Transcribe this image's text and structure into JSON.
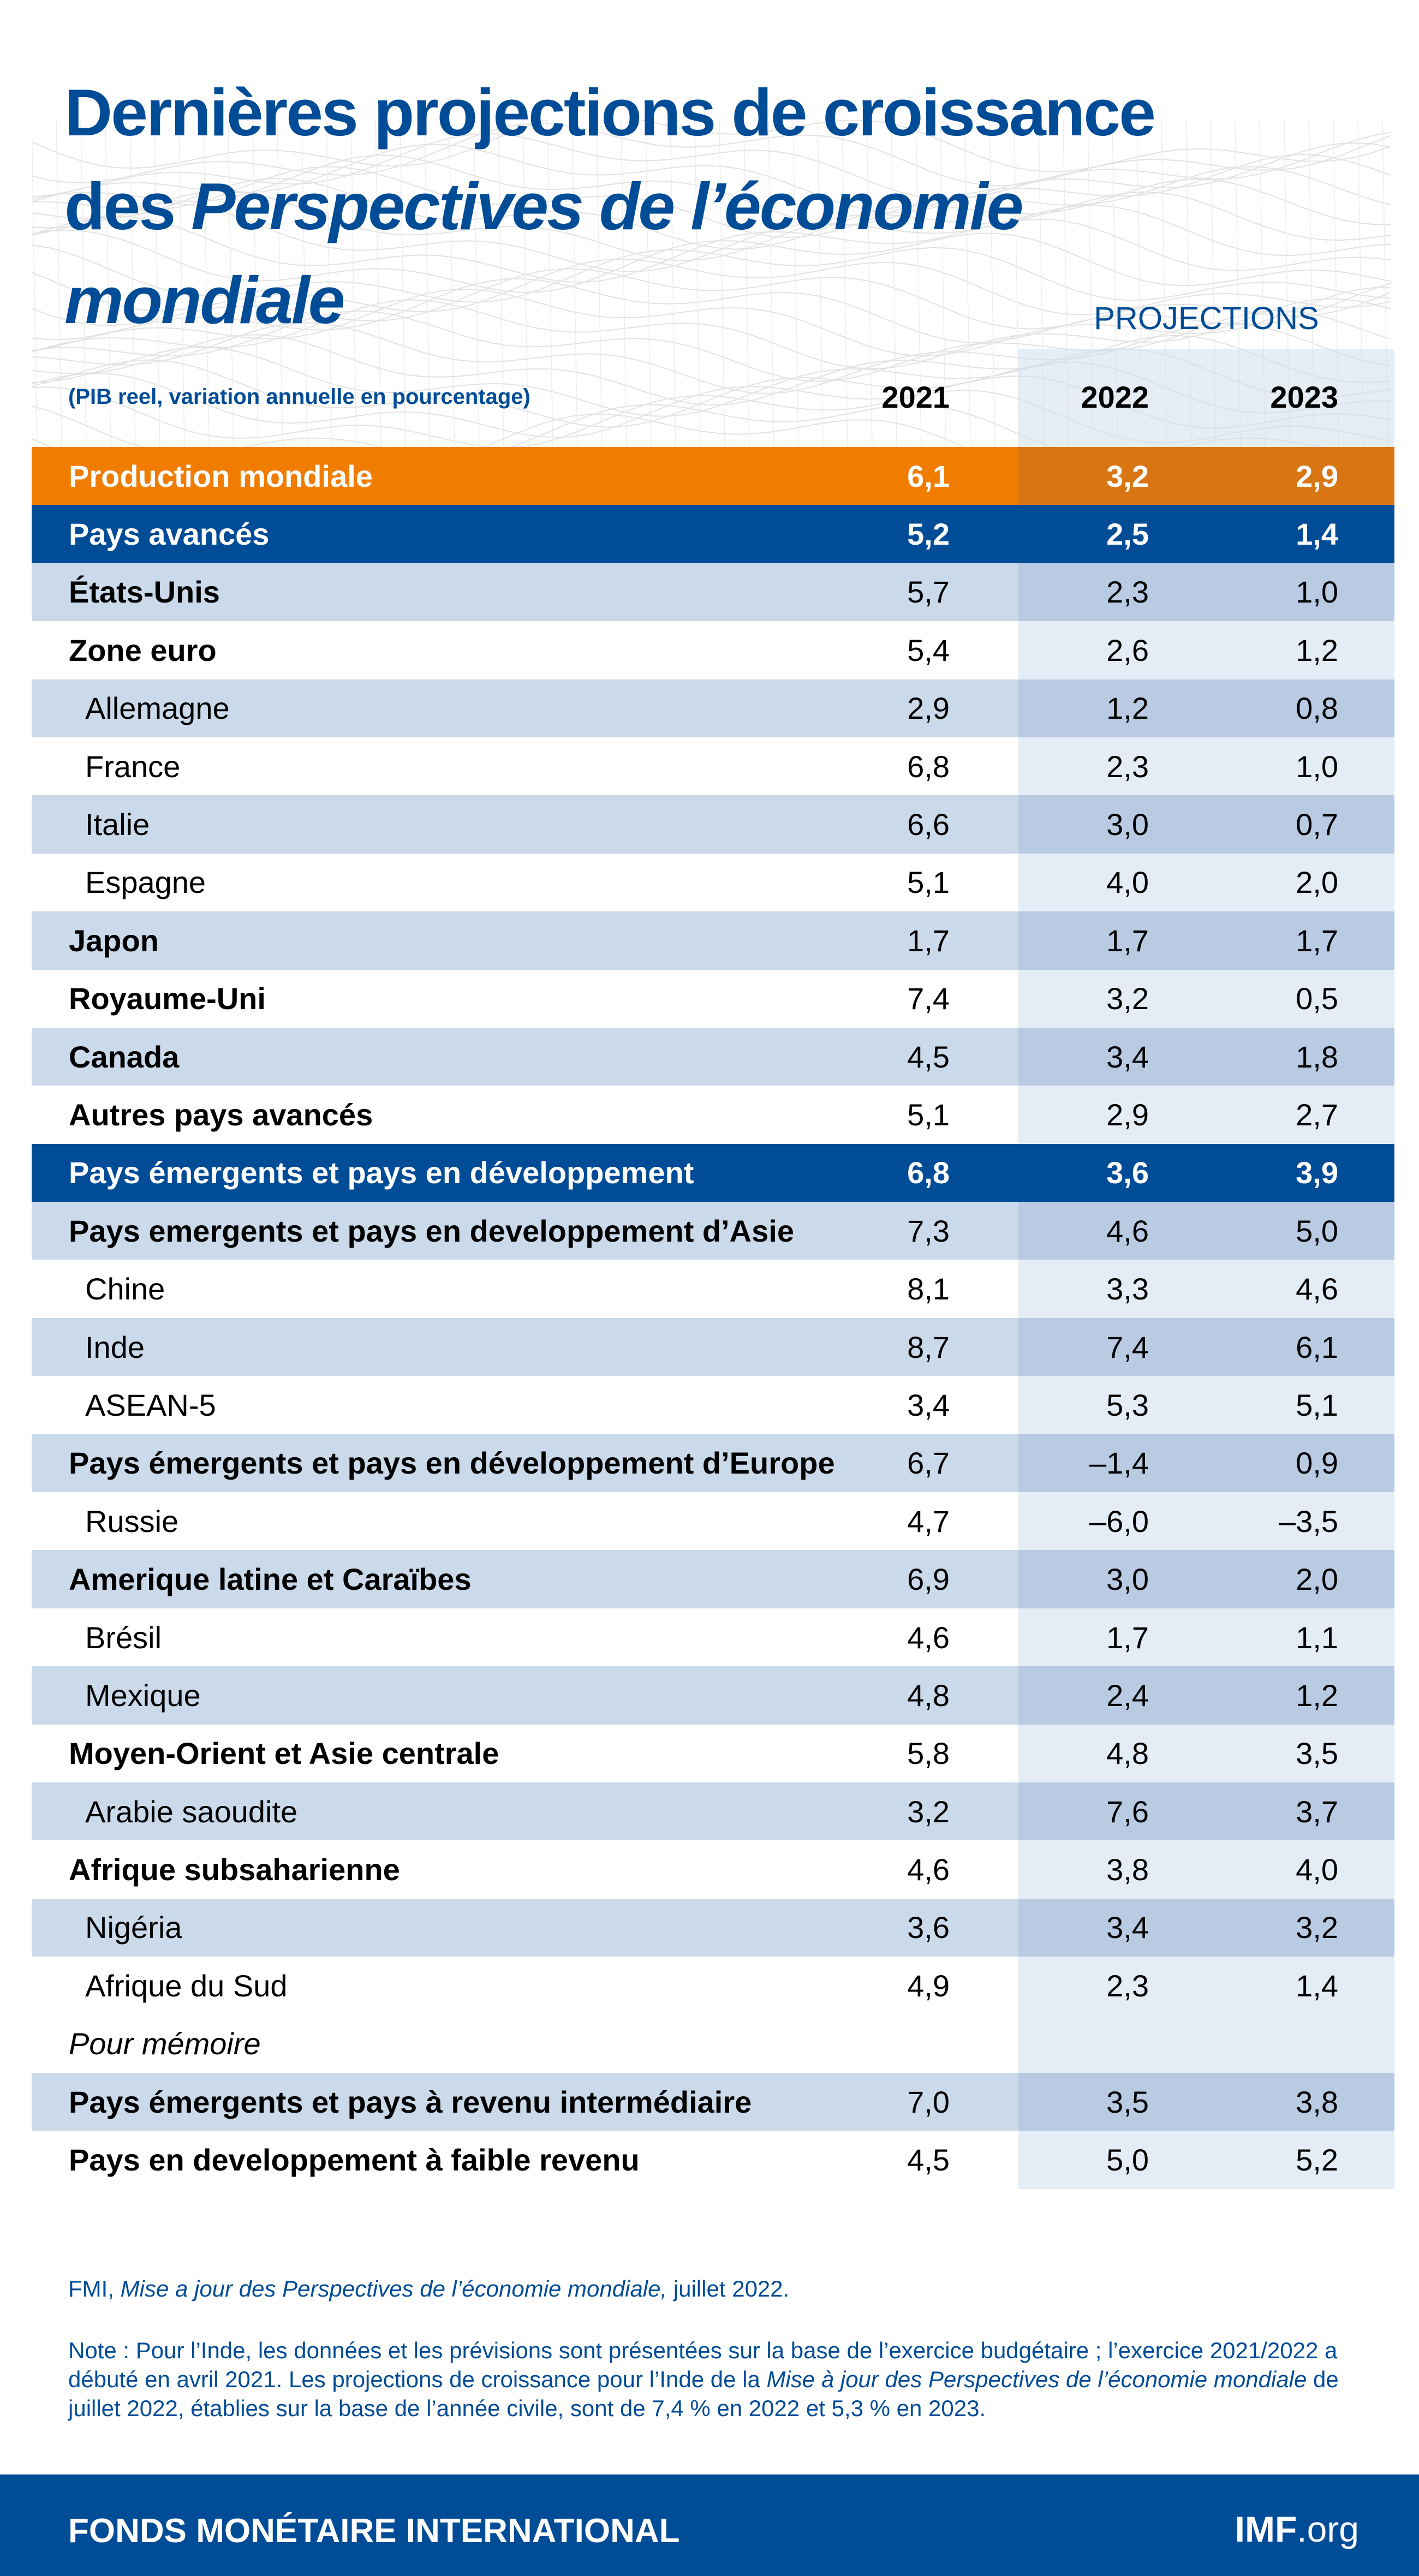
{
  "title": {
    "line1": "Dernières projections de croissance",
    "line2_prefix": "des ",
    "line2_italic": "Perspectives de l’économie",
    "line3_italic": "mondiale"
  },
  "header": {
    "projections_label": "PROJECTIONS",
    "subtitle": "(PIB reel, variation annuelle en pourcentage)",
    "years": [
      "2021",
      "2022",
      "2023"
    ]
  },
  "colors": {
    "brand_blue": "#004c97",
    "orange": "#f07c00",
    "row_light": "#cbdaea",
    "projection_shade": "#b8cbe3"
  },
  "rows": [
    {
      "label": "Production mondiale",
      "style": "orange",
      "values": [
        "6,1",
        "3,2",
        "2,9"
      ]
    },
    {
      "label": "Pays avancés",
      "style": "blue",
      "values": [
        "5,2",
        "2,5",
        "1,4"
      ]
    },
    {
      "label": "États-Unis",
      "style": "light bold",
      "values": [
        "5,7",
        "2,3",
        "1,0"
      ]
    },
    {
      "label": "Zone euro",
      "style": "white bold",
      "values": [
        "5,4",
        "2,6",
        "1,2"
      ]
    },
    {
      "label": "Allemagne",
      "style": "light sub",
      "values": [
        "2,9",
        "1,2",
        "0,8"
      ]
    },
    {
      "label": "France",
      "style": "white sub",
      "values": [
        "6,8",
        "2,3",
        "1,0"
      ]
    },
    {
      "label": "Italie",
      "style": "light sub",
      "values": [
        "6,6",
        "3,0",
        "0,7"
      ]
    },
    {
      "label": "Espagne",
      "style": "white sub",
      "values": [
        "5,1",
        "4,0",
        "2,0"
      ]
    },
    {
      "label": "Japon",
      "style": "light bold",
      "values": [
        "1,7",
        "1,7",
        "1,7"
      ]
    },
    {
      "label": "Royaume-Uni",
      "style": "white bold",
      "values": [
        "7,4",
        "3,2",
        "0,5"
      ]
    },
    {
      "label": "Canada",
      "style": "light bold",
      "values": [
        "4,5",
        "3,4",
        "1,8"
      ]
    },
    {
      "label": "Autres pays avancés",
      "style": "white bold",
      "values": [
        "5,1",
        "2,9",
        "2,7"
      ]
    },
    {
      "label": "Pays émergents et pays en développement",
      "style": "blue",
      "values": [
        "6,8",
        "3,6",
        "3,9"
      ]
    },
    {
      "label": "Pays emergents et pays en developpement d’Asie",
      "style": "light bold",
      "values": [
        "7,3",
        "4,6",
        "5,0"
      ]
    },
    {
      "label": "Chine",
      "style": "white sub",
      "values": [
        "8,1",
        "3,3",
        "4,6"
      ]
    },
    {
      "label": "Inde",
      "style": "light sub",
      "values": [
        "8,7",
        "7,4",
        "6,1"
      ]
    },
    {
      "label": "ASEAN-5",
      "style": "white sub",
      "values": [
        "3,4",
        "5,3",
        "5,1"
      ]
    },
    {
      "label": "Pays émergents et pays en développement d’Europe",
      "style": "light bold",
      "values": [
        "6,7",
        "–1,4",
        "0,9"
      ]
    },
    {
      "label": "Russie",
      "style": "white sub",
      "values": [
        "4,7",
        "–6,0",
        "–3,5"
      ]
    },
    {
      "label": "Amerique latine et Caraïbes",
      "style": "light bold",
      "values": [
        "6,9",
        "3,0",
        "2,0"
      ]
    },
    {
      "label": "Brésil",
      "style": "white sub",
      "values": [
        "4,6",
        "1,7",
        "1,1"
      ]
    },
    {
      "label": "Mexique",
      "style": "light sub",
      "values": [
        "4,8",
        "2,4",
        "1,2"
      ]
    },
    {
      "label": "Moyen-Orient et Asie centrale",
      "style": "white bold",
      "values": [
        "5,8",
        "4,8",
        "3,5"
      ]
    },
    {
      "label": "Arabie saoudite",
      "style": "light sub",
      "values": [
        "3,2",
        "7,6",
        "3,7"
      ]
    },
    {
      "label": "Afrique subsaharienne",
      "style": "white bold",
      "values": [
        "4,6",
        "3,8",
        "4,0"
      ]
    },
    {
      "label": "Nigéria",
      "style": "light sub",
      "values": [
        "3,6",
        "3,4",
        "3,2"
      ]
    },
    {
      "label": "Afrique du Sud",
      "style": "white sub",
      "values": [
        "4,9",
        "2,3",
        "1,4"
      ]
    },
    {
      "label": "Pour mémoire",
      "style": "white italic",
      "values": [
        "",
        "",
        ""
      ]
    },
    {
      "label": "Pays émergents et pays à revenu intermédiaire",
      "style": "light bold",
      "values": [
        "7,0",
        "3,5",
        "3,8"
      ]
    },
    {
      "label": "Pays en developpement à faible revenu",
      "style": "white bold",
      "values": [
        "4,5",
        "5,0",
        "5,2"
      ]
    }
  ],
  "source": {
    "prefix": "FMI, ",
    "italic": "Mise a jour des Perspectives de l’économie mondiale,",
    "suffix": " juillet 2022."
  },
  "note": {
    "part1": "Note : Pour l’Inde, les données et les prévisions sont présentées sur la base de l’exercice budgétaire ; l’exercice 2021/2022 a débuté en avril 2021. Les projections de croissance pour l’Inde de la ",
    "italic1": "Mise à jour des Perspectives  de l’économie mondiale",
    "part2": " de juillet 2022, établies sur la base de l’année civile, sont de 7,4 % en 2022 et 5,3 % en 2023."
  },
  "footer": {
    "organization": "FONDS MONÉTAIRE INTERNATIONAL",
    "site_bold": "IMF",
    "site_rest": ".org"
  }
}
